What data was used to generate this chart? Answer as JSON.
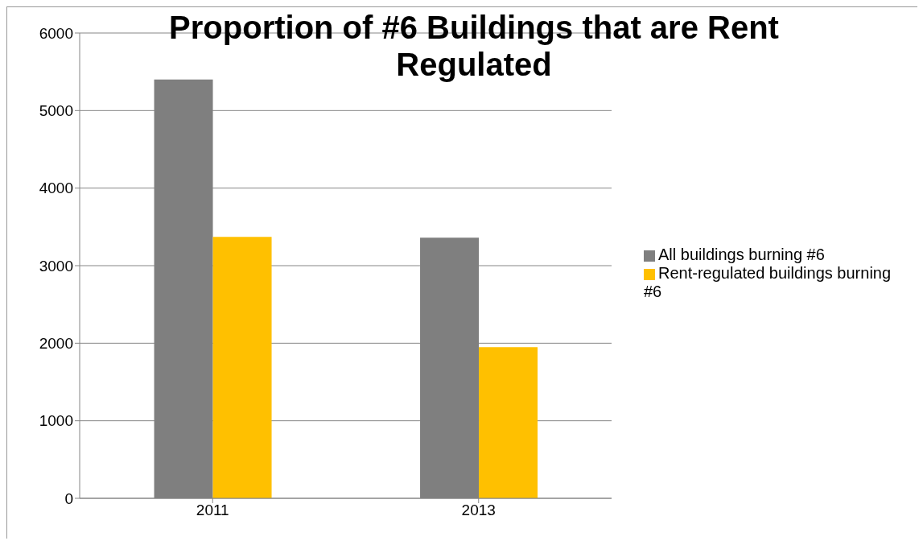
{
  "chart_data": {
    "type": "bar",
    "title": "Proportion of #6 Buildings that are Rent Regulated",
    "categories": [
      "2011",
      "2013"
    ],
    "series": [
      {
        "name": "All buildings burning #6",
        "color": "#7f7f7f",
        "values": [
          5400,
          3360
        ]
      },
      {
        "name": "Rent-regulated buildings burning #6",
        "color": "#ffc000",
        "values": [
          3370,
          1950
        ]
      }
    ],
    "ylim": [
      0,
      6000
    ],
    "yticks": [
      0,
      1000,
      2000,
      3000,
      4000,
      5000,
      6000
    ],
    "grid": "y",
    "legend": "right"
  }
}
